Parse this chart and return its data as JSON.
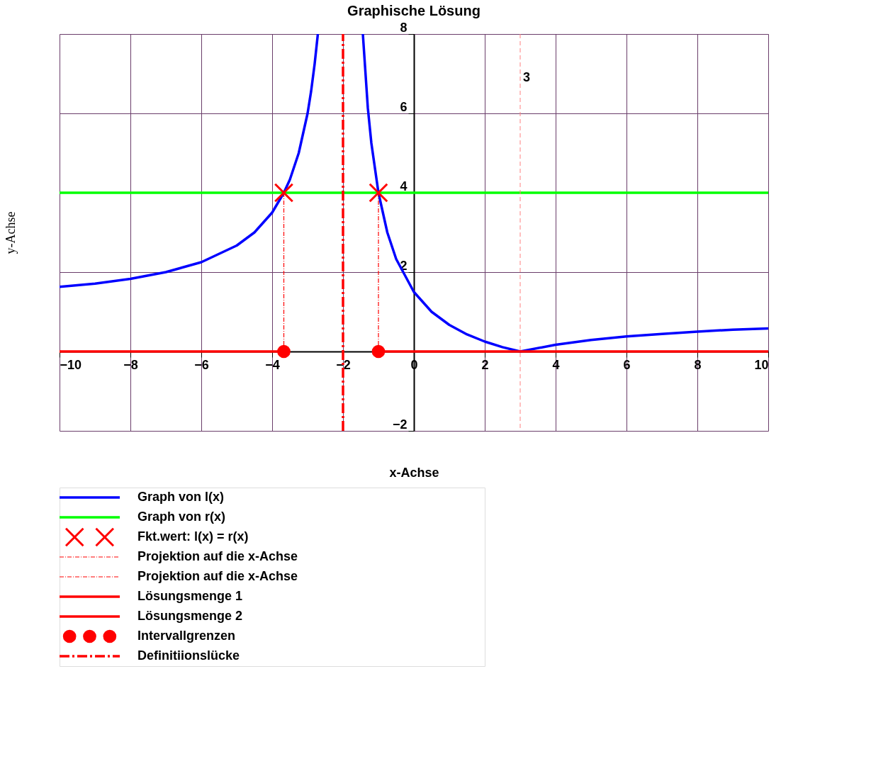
{
  "chart_data": {
    "type": "line",
    "title": "Graphische Lösung",
    "xlabel": "x-Achse",
    "ylabel": "y-Achse",
    "xlim": [
      -10,
      10
    ],
    "ylim": [
      -2,
      8
    ],
    "xticks": [
      -10,
      -8,
      -6,
      -4,
      -2,
      0,
      2,
      4,
      6,
      8,
      10
    ],
    "yticks": [
      -2,
      {
        "value": 0,
        "label": null
      },
      2,
      4,
      6,
      8
    ],
    "grid": true,
    "legend": "bottom",
    "ref_lines": [
      {
        "axis": "x",
        "value": 3,
        "label": "3",
        "color": "#ff8080",
        "line_style": "dashed"
      }
    ],
    "series": [
      {
        "name": "Graph von  l(x)",
        "color": "#0000ff",
        "line_style": "solid",
        "x": [
          -10,
          -9,
          -8,
          -7,
          -6,
          -5,
          -4.5,
          -4,
          -3.67,
          -3.5,
          -3.25,
          -3,
          -2.9,
          -2.8,
          -2.71,
          -2,
          -1.44,
          -1.3,
          -1.2,
          -1,
          -0.75,
          -0.5,
          0,
          0.5,
          1,
          1.5,
          2,
          2.5,
          3,
          4,
          5,
          6,
          7,
          8,
          9,
          10
        ],
        "values": [
          1.63,
          1.71,
          1.83,
          2,
          2.25,
          2.67,
          3,
          3.5,
          4,
          4.33,
          5,
          6,
          6.56,
          7.25,
          8,
          null,
          8,
          6.14,
          5.25,
          4,
          3,
          2.33,
          1.5,
          1,
          0.67,
          0.43,
          0.25,
          0.11,
          0,
          0.17,
          0.29,
          0.38,
          0.44,
          0.5,
          0.55,
          0.58
        ]
      },
      {
        "name": "Graph von  r(x)",
        "color": "#00ff00",
        "line_style": "solid",
        "x": [
          -10,
          10
        ],
        "values": [
          4,
          4
        ]
      },
      {
        "name": "Fkt.wert:  l(x) = r(x)",
        "type": "scatter",
        "color": "#ff0000",
        "marker": "cross",
        "x": [
          -3.67,
          -1
        ],
        "values": [
          4,
          4
        ]
      },
      {
        "name": "Projektion auf die x-Achse",
        "color": "#ff0000",
        "line_style": "dotted",
        "x": [
          -3.67,
          -3.67
        ],
        "values": [
          4,
          0
        ]
      },
      {
        "name": "Projektion auf die x-Achse",
        "color": "#ff0000",
        "line_style": "dotted",
        "x": [
          -1,
          -1
        ],
        "values": [
          4,
          0
        ]
      },
      {
        "name": "Lösungsmenge 1",
        "color": "#ff0000",
        "line_style": "solid",
        "x": [
          -10,
          -3.67
        ],
        "values": [
          0,
          0
        ]
      },
      {
        "name": "Lösungsmenge 2",
        "color": "#ff0000",
        "line_style": "solid",
        "x": [
          -1,
          10
        ],
        "values": [
          0,
          0
        ]
      },
      {
        "name": "Intervallgrenzen",
        "type": "scatter",
        "color": "#ff0000",
        "marker": "circle",
        "x": [
          -3.67,
          -1
        ],
        "values": [
          0,
          0
        ]
      },
      {
        "name": "Definitiionslücke",
        "color": "#ff0000",
        "line_style": "dashed",
        "x": [
          -2,
          -2
        ],
        "values": [
          -2,
          8
        ]
      }
    ]
  }
}
